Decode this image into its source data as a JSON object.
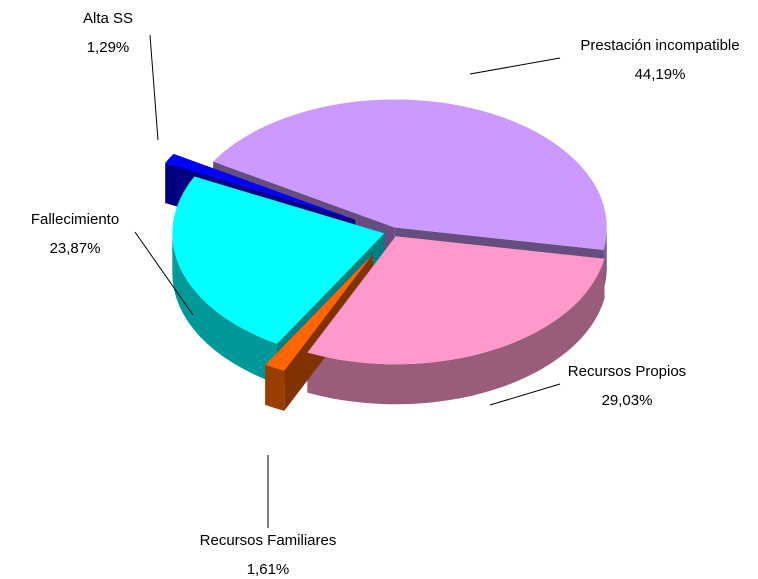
{
  "chart_data": {
    "type": "pie",
    "categories": [
      "Prestación incompatible",
      "Recursos Propios",
      "Recursos Familiares",
      "Fallecimiento",
      "Alta SS"
    ],
    "values": [
      44.19,
      29.03,
      1.61,
      23.87,
      1.29
    ],
    "value_labels": [
      "44,19%",
      "29,03%",
      "1,61%",
      "23,87%",
      "1,29%"
    ],
    "colors": [
      "#cc99ff",
      "#ff99cc",
      "#ff6600",
      "#00ffff",
      "#0000ff"
    ]
  }
}
